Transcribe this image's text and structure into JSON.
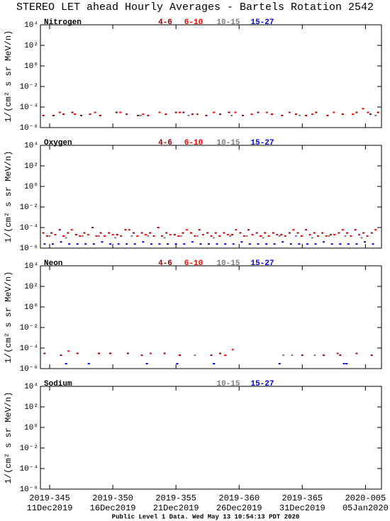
{
  "title": "STEREO LET ahead Hourly Averages - Bartels Rotation 2542",
  "footer": "Public Level 1 Data. Wed May 13 10:54:13 PDT 2020",
  "chart_data": [
    {
      "type": "scatter",
      "label": "Nitrogen",
      "ylabel": "1/(cm² s sr MeV/n)",
      "log_scale": true,
      "ylim": [
        1e-06,
        10000
      ],
      "yticks": [
        {
          "value": 10000,
          "label": "10⁴"
        },
        {
          "value": 100,
          "label": "10²"
        },
        {
          "value": 1,
          "label": "10⁰"
        },
        {
          "value": 0.01,
          "label": "10⁻²"
        },
        {
          "value": 0.0001,
          "label": "10⁻⁴"
        },
        {
          "value": 1e-06,
          "label": "10⁻⁶"
        }
      ],
      "series": [
        {
          "name": "4-6",
          "color": "#a00000",
          "x": [
            344.5,
            345.3,
            346.1,
            346.8,
            347.5,
            348.2,
            349.0,
            350.3,
            351.1,
            352.0,
            352.8,
            354.2,
            355.0,
            355.6,
            356.3,
            357.4,
            358.5,
            359.2,
            360.3,
            361.5,
            362.6,
            363.4,
            364.5,
            365.3,
            366.1,
            367.0,
            368.2,
            369.3,
            370.4,
            371.0
          ],
          "values": [
            1.5e-05,
            1.5e-05,
            2e-05,
            3e-05,
            1.5e-05,
            2e-05,
            1.5e-05,
            3e-05,
            2e-05,
            1.5e-05,
            1.5e-05,
            2e-05,
            3e-05,
            3e-05,
            2e-05,
            1.5e-05,
            2e-05,
            3e-05,
            1.5e-05,
            3e-05,
            2e-05,
            1.5e-05,
            2e-05,
            1.5e-05,
            3e-05,
            1.5e-05,
            2e-05,
            3e-05,
            2e-05,
            3e-05
          ]
        },
        {
          "name": "6-10",
          "color": "#ff0000",
          "x": [
            345.8,
            347.0,
            348.6,
            350.6,
            352.4,
            353.7,
            355.3,
            356.7,
            358.0,
            359.7,
            361.0,
            362.2,
            364.0,
            365.8,
            367.5,
            369.0,
            369.8,
            370.2
          ],
          "values": [
            3e-05,
            2e-05,
            3e-05,
            3e-05,
            2e-05,
            3e-05,
            3e-05,
            2e-05,
            3e-05,
            3e-05,
            2e-05,
            3e-05,
            3e-05,
            2e-05,
            3e-05,
            2e-05,
            7e-05,
            3e-05
          ]
        },
        {
          "name": "10-15",
          "color": "#808080",
          "x": [
            352.2,
            356.0,
            359.4,
            364.8,
            370.8
          ],
          "values": [
            1.5e-05,
            1.5e-05,
            1.5e-05,
            1.5e-05,
            1.5e-05
          ]
        },
        {
          "name": "15-27",
          "color": "#0000ff",
          "x": [],
          "values": []
        }
      ]
    },
    {
      "type": "scatter",
      "label": "Oxygen",
      "ylabel": "1/(cm² s sr MeV/n)",
      "log_scale": true,
      "ylim": [
        1e-06,
        10000
      ],
      "yticks": [
        {
          "value": 10000,
          "label": "10⁴"
        },
        {
          "value": 100,
          "label": "10²"
        },
        {
          "value": 1,
          "label": "10⁰"
        },
        {
          "value": 0.01,
          "label": "10⁻²"
        },
        {
          "value": 0.0001,
          "label": "10⁻⁴"
        },
        {
          "value": 1e-06,
          "label": "10⁻⁶"
        }
      ],
      "series": [
        {
          "name": "4-6",
          "color": "#a00000",
          "x": [
            344.5,
            345.15,
            345.8,
            346.45,
            347.1,
            347.75,
            348.4,
            349.05,
            349.7,
            350.35,
            351.0,
            351.65,
            352.3,
            352.95,
            353.6,
            354.25,
            354.9,
            355.55,
            356.2,
            356.85,
            357.5,
            358.15,
            358.8,
            359.45,
            360.1,
            360.75,
            361.4,
            362.05,
            362.7,
            363.35,
            364.0,
            364.65,
            365.3,
            365.95,
            366.6,
            367.25,
            367.9,
            368.55,
            369.2,
            369.85,
            370.5
          ],
          "values": [
            3e-05,
            3e-05,
            6e-05,
            3e-05,
            2e-05,
            3e-05,
            0.0001,
            3e-05,
            3e-05,
            2e-05,
            6e-05,
            3e-05,
            3e-05,
            3e-05,
            0.0001,
            3e-05,
            2e-05,
            3e-05,
            3e-05,
            6e-05,
            3e-05,
            3e-05,
            3e-05,
            2e-05,
            3e-05,
            6e-05,
            3e-05,
            3e-05,
            3e-05,
            2e-05,
            3e-05,
            3e-05,
            6e-05,
            3e-05,
            3e-05,
            2e-05,
            3e-05,
            3e-05,
            6e-05,
            3e-05,
            3e-05
          ]
        },
        {
          "name": "6-10",
          "color": "#ff0000",
          "x": [
            344.8,
            345.45,
            346.1,
            346.75,
            347.4,
            348.05,
            348.7,
            349.35,
            350.0,
            350.65,
            351.3,
            351.95,
            352.6,
            353.25,
            353.9,
            354.55,
            355.2,
            355.85,
            356.5,
            357.15,
            357.8,
            358.45,
            359.1,
            359.75,
            360.4,
            361.05,
            361.7,
            362.35,
            363.0,
            363.65,
            364.3,
            364.95,
            365.6,
            366.25,
            366.9,
            367.55,
            368.2,
            368.85,
            369.5,
            370.15,
            370.8
          ],
          "values": [
            1.5e-05,
            2e-05,
            1.5e-05,
            6e-05,
            1.5e-05,
            2e-05,
            1.5e-05,
            1.5e-05,
            2e-05,
            1.5e-05,
            6e-05,
            1.5e-05,
            2e-05,
            1.5e-05,
            1.5e-05,
            2e-05,
            1.5e-05,
            6e-05,
            1.5e-05,
            2e-05,
            1.5e-05,
            1.5e-05,
            2e-05,
            6e-05,
            1.5e-05,
            2e-05,
            1.5e-05,
            1.5e-05,
            2e-05,
            1.5e-05,
            6e-05,
            1.5e-05,
            2e-05,
            1.5e-05,
            1.5e-05,
            2e-05,
            6e-05,
            1.5e-05,
            2e-05,
            1.5e-05,
            6e-05
          ]
        },
        {
          "name": "10-15",
          "color": "#808080",
          "x": [
            345.0,
            346.3,
            347.6,
            348.9,
            350.2,
            351.5,
            352.8,
            354.1,
            355.4,
            356.7,
            358.0,
            359.3,
            360.6,
            361.9,
            363.2,
            364.5,
            365.8,
            367.1,
            368.4,
            369.7
          ],
          "values": [
            1.5e-05,
            1e-05,
            1.5e-05,
            1.5e-05,
            1e-05,
            1.5e-05,
            1.5e-05,
            1e-05,
            1.5e-05,
            1.5e-05,
            1e-05,
            1.5e-05,
            1.5e-05,
            1e-05,
            1.5e-05,
            1.5e-05,
            1e-05,
            1.5e-05,
            1.5e-05,
            1e-05
          ]
        },
        {
          "name": "15-27",
          "color": "#0000ff",
          "x": [
            344.6,
            345.25,
            345.9,
            346.55,
            347.2,
            347.85,
            348.5,
            349.15,
            349.8,
            350.45,
            351.1,
            351.75,
            352.4,
            353.05,
            353.7,
            354.35,
            355.0,
            355.65,
            356.3,
            356.95,
            357.6,
            358.25,
            358.9,
            359.55,
            360.2,
            360.85,
            361.5,
            362.15,
            362.8,
            363.45,
            364.1,
            364.75,
            365.4,
            366.05,
            366.7,
            367.35,
            368.0,
            368.65,
            369.3,
            369.95,
            370.6
          ],
          "values": [
            2.5e-06,
            2.5e-06,
            4e-06,
            2.5e-06,
            2.5e-06,
            2.5e-06,
            2.5e-06,
            4e-06,
            2.5e-06,
            2.5e-06,
            2.5e-06,
            2.5e-06,
            4e-06,
            2.5e-06,
            2.5e-06,
            2.5e-06,
            2.5e-06,
            2.5e-06,
            4e-06,
            2.5e-06,
            2.5e-06,
            2.5e-06,
            2.5e-06,
            2.5e-06,
            4e-06,
            2.5e-06,
            2.5e-06,
            2.5e-06,
            2.5e-06,
            4e-06,
            2.5e-06,
            2.5e-06,
            2.5e-06,
            2.5e-06,
            4e-06,
            2.5e-06,
            2.5e-06,
            2.5e-06,
            2.5e-06,
            4e-06,
            2.5e-06
          ]
        }
      ]
    },
    {
      "type": "scatter",
      "label": "Neon",
      "ylabel": "1/(cm² s sr MeV/n)",
      "log_scale": true,
      "ylim": [
        1e-06,
        10000
      ],
      "yticks": [
        {
          "value": 10000,
          "label": "10⁴"
        },
        {
          "value": 100,
          "label": "10²"
        },
        {
          "value": 1,
          "label": "10⁰"
        },
        {
          "value": 0.01,
          "label": "10⁻²"
        },
        {
          "value": 0.0001,
          "label": "10⁻⁴"
        },
        {
          "value": 1e-06,
          "label": "10⁻⁶"
        }
      ],
      "series": [
        {
          "name": "4-6",
          "color": "#a00000",
          "x": [
            344.6,
            345.9,
            347.2,
            348.9,
            349.8,
            351.2,
            352.3,
            354.1,
            355.3,
            357.8,
            358.5,
            365.0,
            366.7,
            368.0,
            369.3,
            370.5
          ],
          "values": [
            3e-05,
            2e-05,
            3e-05,
            3e-05,
            3e-05,
            3e-05,
            2e-05,
            3e-05,
            2e-05,
            2e-05,
            3e-05,
            2e-05,
            2e-05,
            2e-05,
            3e-05,
            2e-05
          ]
        },
        {
          "name": "6-10",
          "color": "#ff0000",
          "x": [
            346.5,
            353.0,
            358.9,
            359.5,
            367.8
          ],
          "values": [
            5e-05,
            3e-05,
            2e-05,
            7e-05,
            3e-05
          ]
        },
        {
          "name": "10-15",
          "color": "#808080",
          "x": [
            356.5,
            363.5,
            364.2,
            366.0
          ],
          "values": [
            2e-05,
            2e-05,
            2e-05,
            2e-05
          ]
        },
        {
          "name": "15-27",
          "color": "#0000ff",
          "x": [
            346.3,
            348.1,
            352.7,
            355.1,
            358.0,
            363.2,
            368.3,
            368.5
          ],
          "values": [
            3e-06,
            3e-06,
            3e-06,
            3e-06,
            3e-06,
            3e-06,
            3e-06,
            3e-06
          ]
        }
      ]
    },
    {
      "type": "scatter",
      "label": "Sodium",
      "ylabel": "1/(cm² s sr MeV/n)",
      "log_scale": true,
      "ylim": [
        1e-06,
        10000
      ],
      "yticks": [
        {
          "value": 10000,
          "label": "10⁴"
        },
        {
          "value": 100,
          "label": "10²"
        },
        {
          "value": 1,
          "label": "10⁰"
        },
        {
          "value": 0.01,
          "label": "10⁻²"
        },
        {
          "value": 0.0001,
          "label": "10⁻⁴"
        },
        {
          "value": 1e-06,
          "label": "10⁻⁶"
        }
      ],
      "xlim": [
        344.27,
        371.27
      ],
      "xticks": [
        {
          "value": 345,
          "label": "2019-345"
        },
        {
          "value": 350,
          "label": "2019-350"
        },
        {
          "value": 355,
          "label": "2019-355"
        },
        {
          "value": 360,
          "label": "2019-360"
        },
        {
          "value": 365,
          "label": "2019-365"
        },
        {
          "value": 370,
          "label": "2020-005"
        }
      ],
      "xtick_dates": [
        "11Dec2019",
        "16Dec2019",
        "21Dec2019",
        "26Dec2019",
        "31Dec2019",
        "05Jan2020"
      ],
      "series": [
        {
          "name": "10-15",
          "color": "#808080",
          "x": [],
          "values": []
        },
        {
          "name": "15-27",
          "color": "#0000ff",
          "x": [],
          "values": []
        }
      ]
    }
  ]
}
